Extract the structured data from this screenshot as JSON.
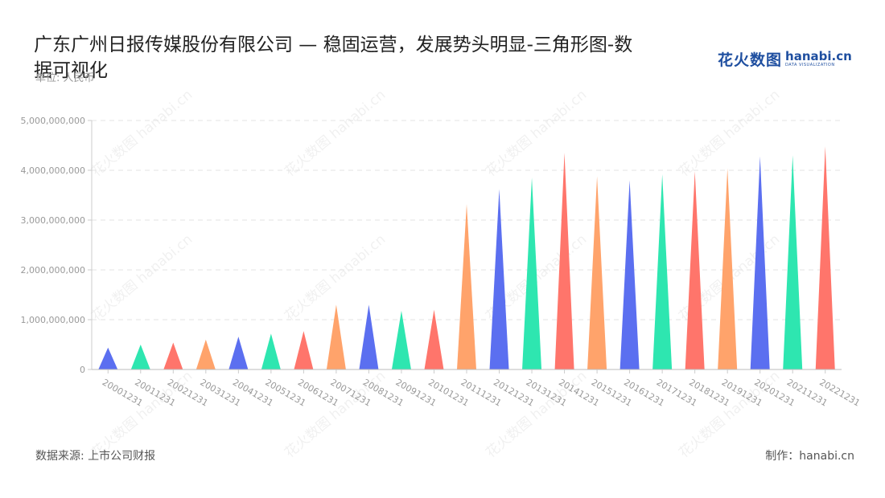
{
  "title": "广东广州日报传媒股份有限公司 — 稳固运营，发展势头明显-三角形图-数据可视化",
  "subtitle": "单位: 人民币",
  "logo": {
    "cn": "花火数图",
    "en": "hanabi.cn",
    "en_sub": "DATA VISUALIZATION"
  },
  "watermark": "花火数图 hanabi.cn",
  "footer": {
    "source": "数据来源: 上市公司财报",
    "credit": "制作：hanabi.cn"
  },
  "colors": {
    "series_palette": [
      "#5b6ff0",
      "#2ee6b0",
      "#ff756b",
      "#ffa36b"
    ],
    "grid": "#e3e3e3",
    "axis_text": "#999999"
  },
  "chart_data": {
    "type": "bar",
    "mark": "triangle",
    "categories": [
      "20001231",
      "20011231",
      "20021231",
      "20031231",
      "20041231",
      "20051231",
      "20061231",
      "20071231",
      "20081231",
      "20091231",
      "20101231",
      "20111231",
      "20121231",
      "20131231",
      "20141231",
      "20151231",
      "20161231",
      "20171231",
      "20181231",
      "20191231",
      "20201231",
      "20211231",
      "20221231"
    ],
    "values": [
      440000000,
      500000000,
      540000000,
      600000000,
      660000000,
      720000000,
      770000000,
      1300000000,
      1300000000,
      1180000000,
      1200000000,
      3320000000,
      3620000000,
      3850000000,
      4350000000,
      3880000000,
      3800000000,
      3920000000,
      3980000000,
      4040000000,
      4280000000,
      4300000000,
      4480000000
    ],
    "bar_colors": [
      "#5b6ff0",
      "#2ee6b0",
      "#ff756b",
      "#ffa36b",
      "#5b6ff0",
      "#2ee6b0",
      "#ff756b",
      "#ffa36b",
      "#5b6ff0",
      "#2ee6b0",
      "#ff756b",
      "#ffa36b",
      "#5b6ff0",
      "#2ee6b0",
      "#ff756b",
      "#ffa36b",
      "#5b6ff0",
      "#2ee6b0",
      "#ff756b",
      "#ffa36b",
      "#5b6ff0",
      "#2ee6b0",
      "#ff756b"
    ],
    "yticks": [
      "0",
      "1,000,000,000",
      "2,000,000,000",
      "3,000,000,000",
      "4,000,000,000",
      "5,000,000,000"
    ],
    "ylim": [
      0,
      5000000000
    ],
    "grid": true,
    "legend": "none"
  }
}
